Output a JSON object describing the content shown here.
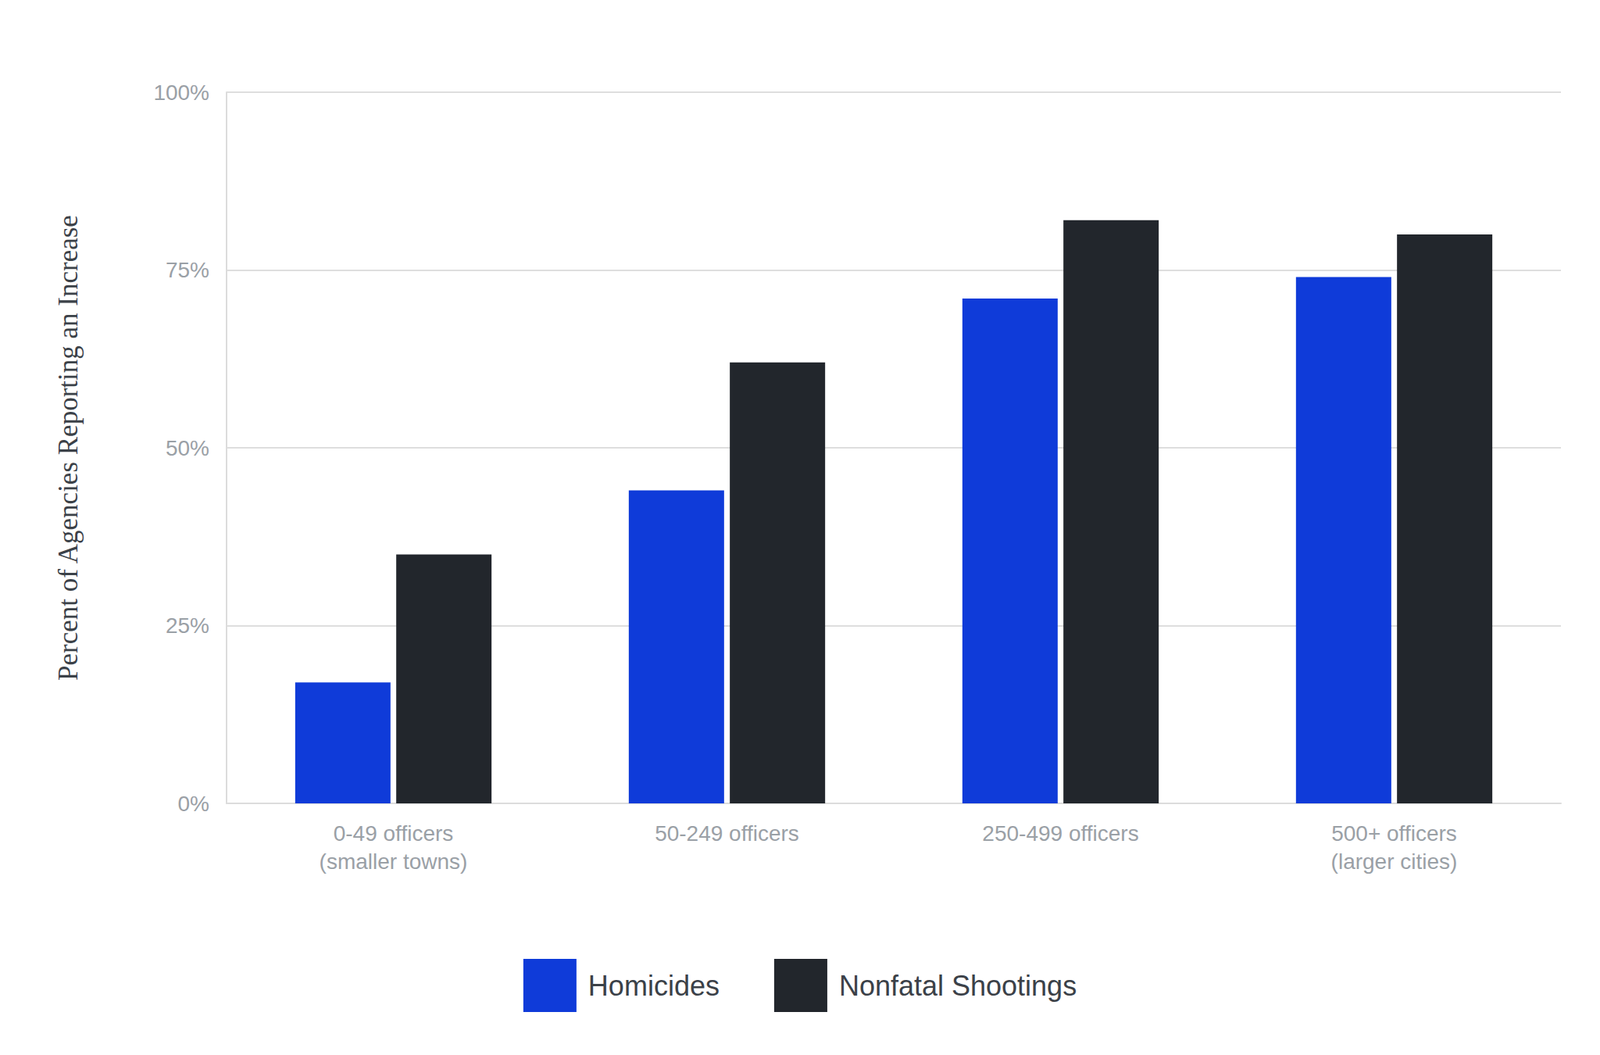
{
  "chart_data": {
    "type": "bar",
    "y_label": "Percent of Agencies Reporting an Increase",
    "categories": [
      "0-49 officers\n(smaller towns)",
      "50-249 officers",
      "250-499 officers",
      "500+ officers\n(larger cities)"
    ],
    "series": [
      {
        "name": "Homicides",
        "color": "#0f3bd9",
        "values": [
          17,
          44,
          71,
          74
        ]
      },
      {
        "name": "Nonfatal Shootings",
        "color": "#22262c",
        "values": [
          35,
          62,
          82,
          80
        ]
      }
    ],
    "ylim": [
      0,
      100
    ],
    "yticks": [
      {
        "value": 0,
        "label": "0%"
      },
      {
        "value": 25,
        "label": "25%"
      },
      {
        "value": 50,
        "label": "50%"
      },
      {
        "value": 75,
        "label": "75%"
      },
      {
        "value": 100,
        "label": "100%"
      }
    ],
    "grid": true,
    "legend": "bottom"
  }
}
